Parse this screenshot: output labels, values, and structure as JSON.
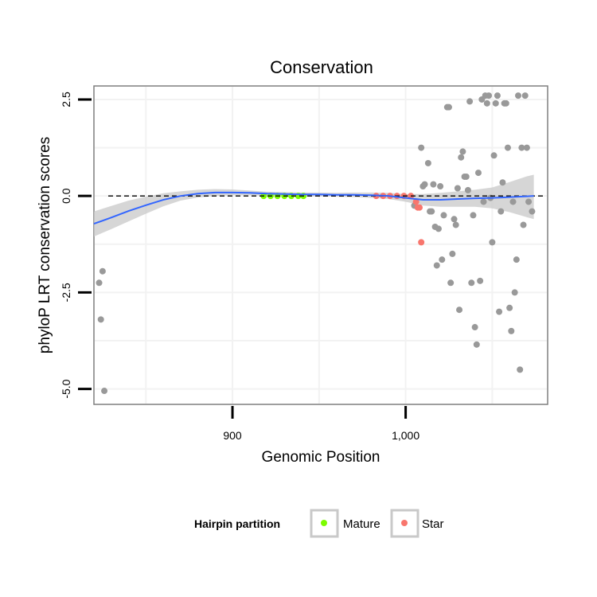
{
  "chart_data": {
    "type": "scatter",
    "title": "Conservation",
    "xlabel": "Genomic Position",
    "ylabel": "phyloP LRT conservation scores",
    "xlim": [
      820,
      1082
    ],
    "ylim": [
      -5.4,
      2.85
    ],
    "x_ticks": [
      900,
      1000
    ],
    "x_tick_labels": [
      "900",
      "1,000"
    ],
    "y_ticks": [
      -5.0,
      -2.5,
      0.0,
      2.5
    ],
    "y_tick_labels": [
      "-5.0",
      "-2.5",
      "0.0",
      "2.5"
    ],
    "reference_line": {
      "y": 0,
      "style": "dashed"
    },
    "legend": {
      "title": "Hairpin partition",
      "entries": [
        {
          "label": "Mature",
          "color": "#7CFC00"
        },
        {
          "label": "Star",
          "color": "#F8766D"
        }
      ],
      "position": "bottom"
    },
    "colors": {
      "other": "#999999",
      "mature": "#7CFC00",
      "star": "#F8766D",
      "smooth": "#3366FF",
      "ribbon": "#c8c8c8"
    },
    "series": [
      {
        "name": "Other",
        "points": [
          [
            823,
            -2.25
          ],
          [
            824,
            -3.2
          ],
          [
            825,
            -1.95
          ],
          [
            826,
            -5.05
          ],
          [
            1005,
            -0.25
          ],
          [
            1009,
            1.25
          ],
          [
            1010,
            0.25
          ],
          [
            1011,
            0.3
          ],
          [
            1013,
            0.85
          ],
          [
            1014,
            -0.4
          ],
          [
            1015,
            -0.4
          ],
          [
            1016,
            0.3
          ],
          [
            1017,
            -0.8
          ],
          [
            1018,
            -1.8
          ],
          [
            1019,
            -0.85
          ],
          [
            1020,
            0.25
          ],
          [
            1021,
            -1.65
          ],
          [
            1022,
            -0.5
          ],
          [
            1024,
            2.3
          ],
          [
            1025,
            2.3
          ],
          [
            1026,
            -2.25
          ],
          [
            1027,
            -1.5
          ],
          [
            1028,
            -0.6
          ],
          [
            1029,
            -0.75
          ],
          [
            1030,
            0.2
          ],
          [
            1031,
            -2.95
          ],
          [
            1032,
            1.0
          ],
          [
            1033,
            1.15
          ],
          [
            1034,
            0.5
          ],
          [
            1035,
            0.5
          ],
          [
            1036,
            0.15
          ],
          [
            1037,
            2.45
          ],
          [
            1038,
            -2.25
          ],
          [
            1039,
            -0.5
          ],
          [
            1040,
            -3.4
          ],
          [
            1041,
            -3.85
          ],
          [
            1042,
            0.6
          ],
          [
            1043,
            -2.2
          ],
          [
            1044,
            2.5
          ],
          [
            1045,
            -0.15
          ],
          [
            1046,
            2.6
          ],
          [
            1047,
            2.4
          ],
          [
            1048,
            2.6
          ],
          [
            1049,
            -0.05
          ],
          [
            1050,
            -1.2
          ],
          [
            1051,
            1.05
          ],
          [
            1052,
            2.4
          ],
          [
            1053,
            2.6
          ],
          [
            1054,
            -3.0
          ],
          [
            1055,
            -0.4
          ],
          [
            1056,
            0.35
          ],
          [
            1057,
            2.4
          ],
          [
            1058,
            2.4
          ],
          [
            1059,
            1.25
          ],
          [
            1060,
            -2.9
          ],
          [
            1061,
            -3.5
          ],
          [
            1062,
            -0.15
          ],
          [
            1063,
            -2.5
          ],
          [
            1064,
            -1.65
          ],
          [
            1065,
            2.6
          ],
          [
            1066,
            -4.5
          ],
          [
            1067,
            1.25
          ],
          [
            1068,
            -0.75
          ],
          [
            1069,
            2.6
          ],
          [
            1070,
            1.25
          ],
          [
            1071,
            -0.15
          ],
          [
            1073,
            -0.4
          ]
        ]
      },
      {
        "name": "Mature",
        "points": [
          [
            918,
            0.0
          ],
          [
            922,
            0.0
          ],
          [
            926,
            0.0
          ],
          [
            930,
            0.0
          ],
          [
            934,
            0.0
          ],
          [
            938,
            0.0
          ],
          [
            941,
            0.0
          ]
        ]
      },
      {
        "name": "Star",
        "points": [
          [
            983,
            0.0
          ],
          [
            987,
            0.0
          ],
          [
            991,
            0.0
          ],
          [
            995,
            0.0
          ],
          [
            999,
            0.0
          ],
          [
            1003,
            0.0
          ],
          [
            1006,
            -0.15
          ],
          [
            1007,
            -0.3
          ],
          [
            1008,
            -0.3
          ],
          [
            1009,
            -1.2
          ]
        ]
      }
    ],
    "smooth_line": {
      "x": [
        820,
        830,
        840,
        850,
        860,
        870,
        880,
        890,
        900,
        910,
        920,
        930,
        940,
        950,
        960,
        970,
        980,
        990,
        1000,
        1010,
        1020,
        1030,
        1040,
        1050,
        1060,
        1070,
        1074
      ],
      "y": [
        -0.72,
        -0.56,
        -0.39,
        -0.24,
        -0.1,
        0.0,
        0.06,
        0.09,
        0.09,
        0.08,
        0.06,
        0.05,
        0.04,
        0.04,
        0.03,
        0.03,
        0.02,
        0.0,
        -0.05,
        -0.1,
        -0.1,
        -0.08,
        -0.06,
        -0.05,
        -0.03,
        -0.01,
        0.0
      ],
      "lower": [
        -1.05,
        -0.86,
        -0.66,
        -0.46,
        -0.27,
        -0.12,
        -0.04,
        0.0,
        0.02,
        0.02,
        0.01,
        0.0,
        -0.01,
        -0.01,
        -0.02,
        -0.03,
        -0.05,
        -0.08,
        -0.15,
        -0.25,
        -0.28,
        -0.28,
        -0.28,
        -0.32,
        -0.42,
        -0.55,
        -0.6
      ],
      "upper": [
        -0.4,
        -0.26,
        -0.12,
        -0.02,
        0.07,
        0.12,
        0.16,
        0.18,
        0.17,
        0.14,
        0.11,
        0.1,
        0.09,
        0.09,
        0.08,
        0.09,
        0.09,
        0.08,
        0.05,
        0.05,
        0.08,
        0.12,
        0.16,
        0.22,
        0.36,
        0.51,
        0.55
      ]
    }
  }
}
